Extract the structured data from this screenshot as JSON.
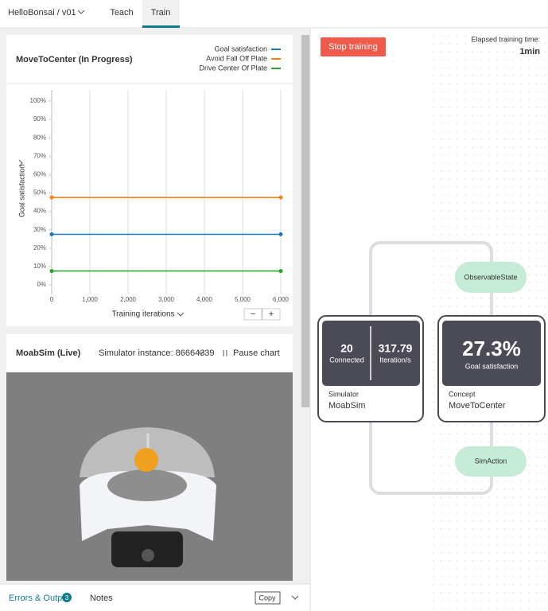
{
  "header": {
    "project": "HelloBonsai / v01",
    "tabs": [
      "Teach",
      "Train"
    ]
  },
  "chart_data": {
    "type": "line",
    "title": "MoveToCenter (In Progress)",
    "ylabel": "Goal satisfaction",
    "xlabel": "Training iterations",
    "x": [
      0,
      6000
    ],
    "series": [
      {
        "name": "Goal satisfaction",
        "color": "#1f77b4",
        "values": [
          27.5,
          27.5
        ]
      },
      {
        "name": "Avoid Fall Off Plate",
        "color": "#ff7f0e",
        "values": [
          47.5,
          47.5
        ]
      },
      {
        "name": "Drive Center Of Plate",
        "color": "#2ca02c",
        "values": [
          7.5,
          7.5
        ]
      }
    ],
    "xlim": [
      0,
      6000
    ],
    "xticks": [
      0,
      {
        "value": 1000,
        "label": "1,000"
      },
      {
        "value": 2000,
        "label": "2,000"
      },
      {
        "value": 3000,
        "label": "3,000"
      },
      {
        "value": 4000,
        "label": "4,000"
      },
      {
        "value": 5000,
        "label": "5,000"
      },
      {
        "value": 6000,
        "label": "6,000"
      }
    ],
    "ylim": [
      0,
      100
    ],
    "yticks": [
      {
        "value": 0,
        "label": "0%"
      },
      {
        "value": 10,
        "label": "10%"
      },
      {
        "value": 20,
        "label": "20%"
      },
      {
        "value": 30,
        "label": "30%"
      },
      {
        "value": 40,
        "label": "40%"
      },
      {
        "value": 50,
        "label": "50%"
      },
      {
        "value": 60,
        "label": "60%"
      },
      {
        "value": 70,
        "label": "70%"
      },
      {
        "value": 80,
        "label": "80%"
      },
      {
        "value": 90,
        "label": "90%"
      },
      {
        "value": 100,
        "label": "100%"
      }
    ],
    "grid": true,
    "legend": "top-right"
  },
  "zoom": {
    "out": "−",
    "in": "+"
  },
  "simulator_panel": {
    "title": "MoabSim (Live)",
    "instance": "Simulator instance: 86664339",
    "pause": "Pause chart"
  },
  "bottom_bar": {
    "errors": "Errors & Output",
    "badge": "3",
    "notes": "Notes",
    "copy": "Copy"
  },
  "training": {
    "stop": "Stop training",
    "elapsed_label": "Elapsed training time:",
    "elapsed": "1min"
  },
  "graph": {
    "observable": "ObservableState",
    "action": "SimAction",
    "simulator": {
      "connected": "20",
      "connected_label": "Connected",
      "rate": "317.79",
      "rate_label": "Iteration/s",
      "kind": "Simulator",
      "name": "MoabSim"
    },
    "concept": {
      "value": "27.3%",
      "value_label": "Goal satisfaction",
      "kind": "Concept",
      "name": "MoveToCenter"
    }
  }
}
